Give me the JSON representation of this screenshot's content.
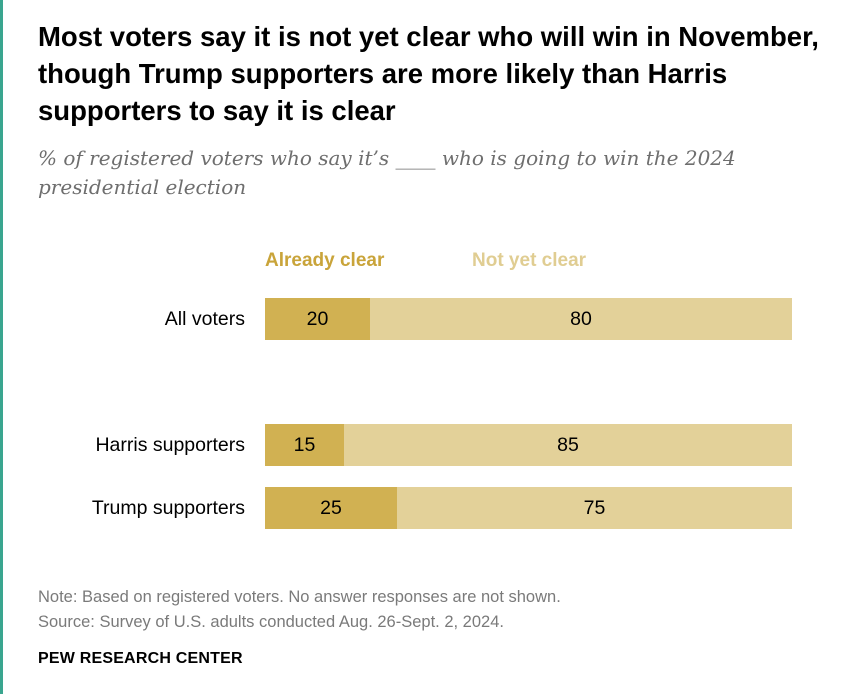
{
  "title": "Most voters say it is not yet clear who will win in November, though Trump supporters are more likely than Harris supporters to say it is clear",
  "subtitle": "% of registered voters who say it’s ____ who is going to win the 2024 presidential election",
  "colors": {
    "already_clear": "#d1b152",
    "not_yet_clear": "#e3d199",
    "already_clear_text": "#c9a43a",
    "not_yet_clear_text": "#e0cd92"
  },
  "chart_data": {
    "type": "bar",
    "orientation": "horizontal",
    "stacked": true,
    "categories": [
      "All voters",
      "Harris supporters",
      "Trump supporters"
    ],
    "series": [
      {
        "name": "Already clear",
        "values": [
          20,
          15,
          25
        ]
      },
      {
        "name": "Not yet clear",
        "values": [
          80,
          85,
          75
        ]
      }
    ],
    "xlim": [
      0,
      100
    ],
    "grid": false,
    "legend_placement": "top"
  },
  "note": "Note: Based on registered voters. No answer responses are not shown.",
  "source": "Source: Survey of U.S. adults conducted Aug. 26-Sept. 2, 2024.",
  "brand": "PEW RESEARCH CENTER"
}
